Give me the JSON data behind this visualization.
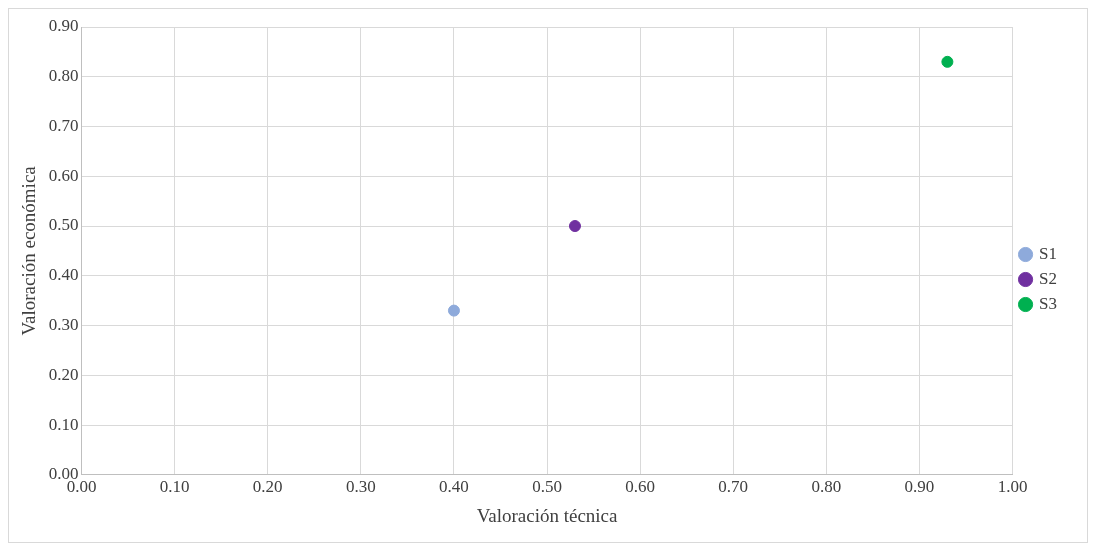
{
  "chart_data": {
    "type": "scatter",
    "xlabel": "Valoración técnica",
    "ylabel": "Valoración económica",
    "series": [
      {
        "name": "S1",
        "color": "#8eaadb",
        "x": [
          0.4
        ],
        "values": [
          0.33
        ]
      },
      {
        "name": "S2",
        "color": "#7030a0",
        "x": [
          0.53
        ],
        "values": [
          0.5
        ]
      },
      {
        "name": "S3",
        "color": "#00b050",
        "x": [
          0.93
        ],
        "values": [
          0.83
        ]
      }
    ],
    "xlim": [
      0,
      1
    ],
    "ylim": [
      0,
      0.9
    ],
    "xticks": [
      {
        "value": 0,
        "label": "0.00"
      },
      {
        "value": 0.1,
        "label": "0.10"
      },
      {
        "value": 0.2,
        "label": "0.20"
      },
      {
        "value": 0.3,
        "label": "0.30"
      },
      {
        "value": 0.4,
        "label": "0.40"
      },
      {
        "value": 0.5,
        "label": "0.50"
      },
      {
        "value": 0.6,
        "label": "0.60"
      },
      {
        "value": 0.7,
        "label": "0.70"
      },
      {
        "value": 0.8,
        "label": "0.80"
      },
      {
        "value": 0.9,
        "label": "0.90"
      },
      {
        "value": 1,
        "label": "1.00"
      }
    ],
    "yticks": [
      {
        "value": 0,
        "label": "0.00"
      },
      {
        "value": 0.1,
        "label": "0.10"
      },
      {
        "value": 0.2,
        "label": "0.20"
      },
      {
        "value": 0.3,
        "label": "0.30"
      },
      {
        "value": 0.4,
        "label": "0.40"
      },
      {
        "value": 0.5,
        "label": "0.50"
      },
      {
        "value": 0.6,
        "label": "0.60"
      },
      {
        "value": 0.7,
        "label": "0.70"
      },
      {
        "value": 0.8,
        "label": "0.80"
      },
      {
        "value": 0.9,
        "label": "0.90"
      }
    ],
    "grid": true,
    "legend": "right",
    "marker": "circle"
  }
}
